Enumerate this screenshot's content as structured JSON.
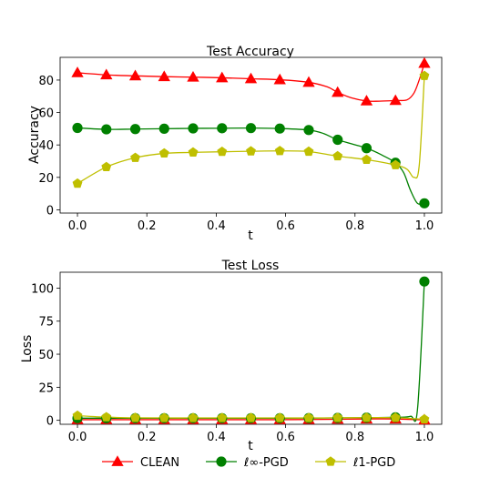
{
  "chart_data": [
    {
      "type": "line",
      "title": "Test Accuracy",
      "xlabel": "t",
      "ylabel": "Accuracy",
      "xlim": [
        -0.05,
        1.05
      ],
      "ylim": [
        -2,
        94
      ],
      "xticks": [
        "0.0",
        "0.2",
        "0.4",
        "0.6",
        "0.8",
        "1.0"
      ],
      "yticks": [
        "0",
        "20",
        "40",
        "60",
        "80"
      ],
      "grid": false,
      "x": [
        0.0,
        0.0833,
        0.1667,
        0.25,
        0.3333,
        0.4167,
        0.5,
        0.5833,
        0.6667,
        0.75,
        0.8333,
        0.9167,
        1.0
      ],
      "series": [
        {
          "name": "CLEAN",
          "color": "#ff0000",
          "marker": "triangle",
          "values": [
            84.5,
            83.2,
            82.6,
            82.1,
            81.8,
            81.4,
            80.8,
            80.2,
            78.6,
            72.4,
            67.1,
            67.4,
            90.3
          ],
          "curve": [
            [
              0.0,
              84.5
            ],
            [
              0.0833,
              83.2
            ],
            [
              0.1667,
              82.6
            ],
            [
              0.25,
              82.1
            ],
            [
              0.3333,
              81.8
            ],
            [
              0.4167,
              81.4
            ],
            [
              0.5,
              80.8
            ],
            [
              0.5833,
              80.2
            ],
            [
              0.6667,
              78.6
            ],
            [
              0.72,
              75.8
            ],
            [
              0.75,
              72.4
            ],
            [
              0.79,
              69.0
            ],
            [
              0.8333,
              67.1
            ],
            [
              0.87,
              67.0
            ],
            [
              0.9167,
              67.4
            ],
            [
              0.95,
              67.8
            ],
            [
              0.97,
              72.0
            ],
            [
              0.985,
              80.0
            ],
            [
              1.0,
              90.3
            ]
          ]
        },
        {
          "name": "ℓ∞-PGD",
          "color": "#008000",
          "marker": "circle",
          "values": [
            50.5,
            49.6,
            49.8,
            50.0,
            50.2,
            50.3,
            50.4,
            50.1,
            49.2,
            43.2,
            38.0,
            29.0,
            4.0
          ],
          "curve": [
            [
              0.0,
              50.5
            ],
            [
              0.0833,
              49.6
            ],
            [
              0.1667,
              49.8
            ],
            [
              0.25,
              50.0
            ],
            [
              0.3333,
              50.2
            ],
            [
              0.4167,
              50.3
            ],
            [
              0.5,
              50.4
            ],
            [
              0.5833,
              50.1
            ],
            [
              0.6667,
              49.2
            ],
            [
              0.71,
              47.0
            ],
            [
              0.75,
              43.2
            ],
            [
              0.8333,
              38.0
            ],
            [
              0.88,
              33.5
            ],
            [
              0.9167,
              29.0
            ],
            [
              0.94,
              23.0
            ],
            [
              0.96,
              12.0
            ],
            [
              0.98,
              4.0
            ],
            [
              1.0,
              4.0
            ]
          ]
        },
        {
          "name": "ℓ1-PGD",
          "color": "#bfbf00",
          "marker": "pentagon",
          "values": [
            16.2,
            26.4,
            32.1,
            34.8,
            35.4,
            35.8,
            36.1,
            36.3,
            35.9,
            33.1,
            30.9,
            27.6,
            82.6
          ],
          "curve": [
            [
              0.0,
              16.2
            ],
            [
              0.0833,
              26.4
            ],
            [
              0.1667,
              32.1
            ],
            [
              0.25,
              34.8
            ],
            [
              0.3333,
              35.4
            ],
            [
              0.4167,
              35.8
            ],
            [
              0.5,
              36.1
            ],
            [
              0.5833,
              36.3
            ],
            [
              0.6667,
              35.9
            ],
            [
              0.75,
              33.1
            ],
            [
              0.8333,
              30.9
            ],
            [
              0.9167,
              27.6
            ],
            [
              0.95,
              25.0
            ],
            [
              0.97,
              20.0
            ],
            [
              0.985,
              27.0
            ],
            [
              1.0,
              82.6
            ]
          ]
        }
      ]
    },
    {
      "type": "line",
      "title": "Test Loss",
      "xlabel": "t",
      "ylabel": "Loss",
      "xlim": [
        -0.05,
        1.05
      ],
      "ylim": [
        -3,
        112
      ],
      "xticks": [
        "0.0",
        "0.2",
        "0.4",
        "0.6",
        "0.8",
        "1.0"
      ],
      "yticks": [
        "0",
        "25",
        "50",
        "75",
        "100"
      ],
      "grid": false,
      "x": [
        0.0,
        0.0833,
        0.1667,
        0.25,
        0.3333,
        0.4167,
        0.5,
        0.5833,
        0.6667,
        0.75,
        0.8333,
        0.9167,
        1.0
      ],
      "series": [
        {
          "name": "CLEAN",
          "color": "#ff0000",
          "marker": "triangle",
          "values": [
            0.5,
            0.5,
            0.5,
            0.5,
            0.5,
            0.5,
            0.5,
            0.5,
            0.6,
            0.8,
            1.0,
            1.0,
            0.3
          ],
          "curve": [
            [
              0.0,
              0.5
            ],
            [
              0.0833,
              0.5
            ],
            [
              0.1667,
              0.5
            ],
            [
              0.25,
              0.5
            ],
            [
              0.3333,
              0.5
            ],
            [
              0.4167,
              0.5
            ],
            [
              0.5,
              0.5
            ],
            [
              0.5833,
              0.5
            ],
            [
              0.6667,
              0.6
            ],
            [
              0.75,
              0.8
            ],
            [
              0.8333,
              1.0
            ],
            [
              0.9167,
              1.0
            ],
            [
              1.0,
              0.3
            ]
          ]
        },
        {
          "name": "ℓ∞-PGD",
          "color": "#008000",
          "marker": "circle",
          "values": [
            1.6,
            1.6,
            1.6,
            1.6,
            1.6,
            1.6,
            1.6,
            1.6,
            1.7,
            1.8,
            2.0,
            2.3,
            105.0
          ],
          "curve": [
            [
              0.0,
              1.6
            ],
            [
              0.0833,
              1.6
            ],
            [
              0.1667,
              1.6
            ],
            [
              0.25,
              1.6
            ],
            [
              0.3333,
              1.6
            ],
            [
              0.4167,
              1.6
            ],
            [
              0.5,
              1.6
            ],
            [
              0.5833,
              1.6
            ],
            [
              0.6667,
              1.7
            ],
            [
              0.75,
              1.8
            ],
            [
              0.8333,
              2.0
            ],
            [
              0.9167,
              2.3
            ],
            [
              0.96,
              3.0
            ],
            [
              0.98,
              8.0
            ],
            [
              1.0,
              105.0
            ]
          ]
        },
        {
          "name": "ℓ1-PGD",
          "color": "#bfbf00",
          "marker": "pentagon",
          "values": [
            3.5,
            2.4,
            1.9,
            1.8,
            1.8,
            1.8,
            1.8,
            1.8,
            1.8,
            1.9,
            2.0,
            2.0,
            0.8
          ],
          "curve": [
            [
              0.0,
              3.5
            ],
            [
              0.0833,
              2.4
            ],
            [
              0.1667,
              1.9
            ],
            [
              0.25,
              1.8
            ],
            [
              0.3333,
              1.8
            ],
            [
              0.4167,
              1.8
            ],
            [
              0.5,
              1.8
            ],
            [
              0.5833,
              1.8
            ],
            [
              0.6667,
              1.8
            ],
            [
              0.75,
              1.9
            ],
            [
              0.8333,
              2.0
            ],
            [
              0.9167,
              2.0
            ],
            [
              1.0,
              0.8
            ]
          ]
        }
      ]
    }
  ],
  "legend": {
    "placement": "bottom-center",
    "items": [
      {
        "label": "CLEAN",
        "color": "#ff0000",
        "marker": "triangle"
      },
      {
        "label": "ℓ∞-PGD",
        "color": "#008000",
        "marker": "circle"
      },
      {
        "label": "ℓ1-PGD",
        "color": "#bfbf00",
        "marker": "pentagon"
      }
    ]
  }
}
